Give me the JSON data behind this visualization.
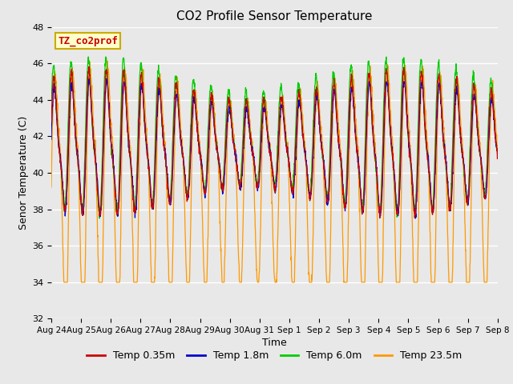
{
  "title": "CO2 Profile Sensor Temperature",
  "ylabel": "Senor Temperature (C)",
  "xlabel": "Time",
  "ylim": [
    32,
    48
  ],
  "annotation_text": "TZ_co2prof",
  "annotation_color": "#cc0000",
  "annotation_bg": "#ffffcc",
  "annotation_border": "#ccaa00",
  "bg_color": "#e8e8e8",
  "grid_color": "#ffffff",
  "legend_entries": [
    "Temp 0.35m",
    "Temp 1.8m",
    "Temp 6.0m",
    "Temp 23.5m"
  ],
  "line_colors": [
    "#cc0000",
    "#0000cc",
    "#00cc00",
    "#ff9900"
  ],
  "xtick_labels": [
    "Aug 24",
    "Aug 25",
    "Aug 26",
    "Aug 27",
    "Aug 28",
    "Aug 29",
    "Aug 30",
    "Aug 31",
    "Sep 1",
    "Sep 2",
    "Sep 3",
    "Sep 4",
    "Sep 5",
    "Sep 6",
    "Sep 7",
    "Sep 8"
  ],
  "ytick_positions": [
    32,
    34,
    36,
    38,
    40,
    42,
    44,
    46,
    48
  ]
}
